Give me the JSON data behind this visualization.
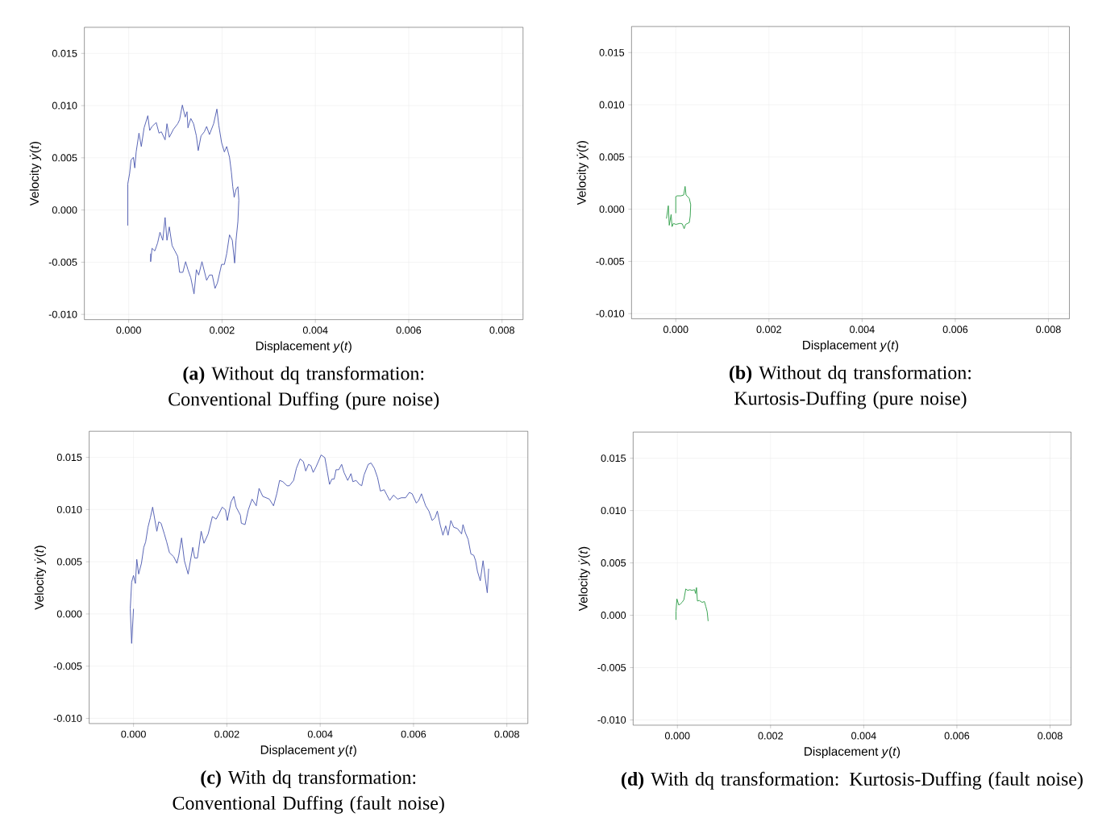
{
  "chart_data": [
    {
      "type": "line",
      "title": "**(a)** Without dq transformation: Conventional Duffing (pure noise)",
      "xlabel": "Displacement *y*(*t*)",
      "ylabel": "Velocity *ẏ*(*t*)",
      "color": "#4f5bb0",
      "grid": true,
      "x": [
        -2e-05,
        -2e-05,
        2e-05,
        5e-05,
        0.0001,
        0.00013,
        0.00016,
        0.00022,
        0.00027,
        0.00033,
        0.00041,
        0.00045,
        0.0005,
        0.00059,
        0.00065,
        0.0007,
        0.00078,
        0.00082,
        0.00087,
        0.00096,
        0.00105,
        0.00109,
        0.00115,
        0.00121,
        0.00125,
        0.00127,
        0.00133,
        0.00139,
        0.00145,
        0.00149,
        0.00155,
        0.00162,
        0.00167,
        0.00173,
        0.00182,
        0.00189,
        0.00193,
        0.00199,
        0.00205,
        0.0021,
        0.00216,
        0.0022,
        0.00223,
        0.00226,
        0.0023,
        0.00234,
        0.00236,
        0.00234,
        0.0023,
        0.00227,
        0.00222,
        0.00216,
        0.0021,
        0.00205,
        0.00199,
        0.0019,
        0.00185,
        0.00179,
        0.00173,
        0.00167,
        0.00157,
        0.0015,
        0.00145,
        0.0014,
        0.00133,
        0.00127,
        0.00122,
        0.00116,
        0.00109,
        0.00105,
        0.00099,
        0.00093,
        0.00087,
        0.00082,
        0.00078,
        0.00073,
        0.00067,
        0.00062,
        0.00056,
        0.0005,
        0.00047,
        0.00047
      ],
      "values": [
        -0.00149,
        0.00249,
        0.00351,
        0.00479,
        0.00505,
        0.00403,
        0.00556,
        0.00736,
        0.00608,
        0.00787,
        0.00903,
        0.00762,
        0.008,
        0.00838,
        0.00736,
        0.00749,
        0.00672,
        0.00826,
        0.00697,
        0.00774,
        0.00826,
        0.00864,
        0.01005,
        0.0089,
        0.00941,
        0.00787,
        0.00877,
        0.00826,
        0.0071,
        0.00569,
        0.0071,
        0.00749,
        0.008,
        0.00723,
        0.00826,
        0.00967,
        0.00813,
        0.00646,
        0.00556,
        0.00608,
        0.00505,
        0.00364,
        0.00223,
        0.00121,
        0.00197,
        0.00223,
        0.00095,
        -0.0011,
        -0.0029,
        -0.00508,
        -0.0029,
        -0.00238,
        -0.00418,
        -0.00521,
        -0.00521,
        -0.007,
        -0.00751,
        -0.00623,
        -0.00623,
        -0.00674,
        -0.00495,
        -0.00623,
        -0.00572,
        -0.00803,
        -0.00649,
        -0.00572,
        -0.00495,
        -0.00597,
        -0.00597,
        -0.00444,
        -0.00392,
        -0.00341,
        -0.00162,
        -0.0029,
        -0.00072,
        -0.0029,
        -0.00213,
        -0.00315,
        -0.00392,
        -0.00367,
        -0.00495,
        -0.00418
      ],
      "xlim": [
        -0.00095,
        0.00845
      ],
      "ylim": [
        -0.0105,
        0.0175
      ],
      "xticks": [
        {
          "value": 0,
          "label": "0.000"
        },
        {
          "value": 0.002,
          "label": "0.002"
        },
        {
          "value": 0.004,
          "label": "0.004"
        },
        {
          "value": 0.006,
          "label": "0.006"
        },
        {
          "value": 0.008,
          "label": "0.008"
        }
      ],
      "yticks": [
        {
          "value": -0.01,
          "label": "-0.010"
        },
        {
          "value": -0.005,
          "label": "-0.005"
        },
        {
          "value": 0,
          "label": "0.000"
        },
        {
          "value": 0.005,
          "label": "0.005"
        },
        {
          "value": 0.01,
          "label": "0.010"
        },
        {
          "value": 0.015,
          "label": "0.015"
        }
      ]
    },
    {
      "type": "line",
      "title": "**(b)** Without dq transformation: Kurtosis-Duffing (pure noise)",
      "xlabel": "Displacement *y*(*t*)",
      "ylabel": "Velocity *ẏ*(*t*)",
      "color": "#2e9e48",
      "grid": true,
      "x": [
        -0.0002,
        -0.00016,
        -0.00014,
        -0.0001,
        -8e-05,
        -5e-05,
        0,
        9e-05,
        0.00014,
        0.00018,
        0.00021,
        0.00029,
        0.00031,
        0.00032,
        0.00029,
        0.00022,
        0.0002,
        0.00017,
        0.00011,
        3e-05,
        0,
        0
      ],
      "values": [
        -0.0009,
        0.00033,
        -0.00154,
        -0.00051,
        -0.00167,
        -0.00136,
        -0.00146,
        -0.00136,
        -0.00141,
        -0.00187,
        -0.00146,
        -0.00128,
        -0.00064,
        0.00044,
        0.00103,
        0.00136,
        0.00218,
        0.00136,
        0.00128,
        0.00128,
        0.00121,
        -0.00038
      ],
      "xlim": [
        -0.00095,
        0.00845
      ],
      "ylim": [
        -0.0105,
        0.0175
      ],
      "xticks": [
        {
          "value": 0,
          "label": "0.000"
        },
        {
          "value": 0.002,
          "label": "0.002"
        },
        {
          "value": 0.004,
          "label": "0.004"
        },
        {
          "value": 0.006,
          "label": "0.006"
        },
        {
          "value": 0.008,
          "label": "0.008"
        }
      ],
      "yticks": [
        {
          "value": -0.01,
          "label": "-0.010"
        },
        {
          "value": -0.005,
          "label": "-0.005"
        },
        {
          "value": 0,
          "label": "0.000"
        },
        {
          "value": 0.005,
          "label": "0.005"
        },
        {
          "value": 0.01,
          "label": "0.010"
        },
        {
          "value": 0.015,
          "label": "0.015"
        }
      ]
    },
    {
      "type": "line",
      "title": "**(c)** With dq transformation: Conventional Duffing (fault noise)",
      "xlabel": "Displacement *y*(*t*)",
      "ylabel": "Velocity *ẏ*(*t*)",
      "color": "#4f5bb0",
      "grid": true,
      "x": [
        0,
        -4e-05,
        -7e-05,
        -4e-05,
        0,
        4e-05,
        7e-05,
        0.00011,
        0.00017,
        0.00022,
        0.00026,
        0.00031,
        0.00036,
        0.00041,
        0.00046,
        0.0005,
        0.00054,
        0.00059,
        0.00066,
        0.00071,
        0.00077,
        0.00086,
        0.00093,
        0.00097,
        0.00103,
        0.00109,
        0.00117,
        0.00127,
        0.00131,
        0.00137,
        0.00145,
        0.00151,
        0.0016,
        0.00169,
        0.00177,
        0.00183,
        0.0019,
        0.00197,
        0.00201,
        0.00209,
        0.00215,
        0.0022,
        0.00229,
        0.00231,
        0.00239,
        0.00246,
        0.00254,
        0.00263,
        0.00269,
        0.00277,
        0.00291,
        0.003,
        0.00307,
        0.00313,
        0.0032,
        0.00329,
        0.00334,
        0.00343,
        0.00349,
        0.00357,
        0.00364,
        0.00369,
        0.00375,
        0.0038,
        0.00385,
        0.00391,
        0.00396,
        0.00402,
        0.0041,
        0.00414,
        0.0042,
        0.00425,
        0.0043,
        0.00434,
        0.0044,
        0.00446,
        0.00451,
        0.00459,
        0.00466,
        0.0047,
        0.00477,
        0.00484,
        0.00489,
        0.00494,
        0.00503,
        0.00509,
        0.00516,
        0.00523,
        0.00529,
        0.00537,
        0.00543,
        0.00549,
        0.00557,
        0.00566,
        0.00574,
        0.00583,
        0.00591,
        0.00597,
        0.00606,
        0.00611,
        0.00617,
        0.00626,
        0.00633,
        0.0064,
        0.00646,
        0.00651,
        0.00657,
        0.00663,
        0.00669,
        0.00674,
        0.0068,
        0.00686,
        0.00694,
        0.00703,
        0.00706,
        0.00711,
        0.00717,
        0.00723,
        0.00729,
        0.00733,
        0.00737,
        0.00743,
        0.00749,
        0.00754,
        0.00758,
        0.00761
      ],
      "values": [
        0.00049,
        -0.00282,
        0.00049,
        0.00305,
        0.00369,
        0.00292,
        0.00523,
        0.00382,
        0.00485,
        0.00638,
        0.0069,
        0.00831,
        0.00921,
        0.01023,
        0.00895,
        0.00792,
        0.00882,
        0.00869,
        0.00767,
        0.0069,
        0.00587,
        0.00549,
        0.00485,
        0.00562,
        0.00728,
        0.0051,
        0.00382,
        0.00638,
        0.00536,
        0.00536,
        0.00792,
        0.00677,
        0.00767,
        0.00933,
        0.00908,
        0.00959,
        0.01023,
        0.00997,
        0.00895,
        0.01074,
        0.01126,
        0.01023,
        0.00946,
        0.00869,
        0.00856,
        0.00997,
        0.011,
        0.01036,
        0.01203,
        0.01126,
        0.011,
        0.01036,
        0.01151,
        0.01279,
        0.01267,
        0.01228,
        0.01228,
        0.01279,
        0.01395,
        0.01485,
        0.01459,
        0.01369,
        0.01433,
        0.01421,
        0.01356,
        0.01408,
        0.01459,
        0.01523,
        0.01497,
        0.01395,
        0.01241,
        0.01292,
        0.01292,
        0.01382,
        0.01382,
        0.01433,
        0.01356,
        0.01279,
        0.01344,
        0.01267,
        0.01279,
        0.01241,
        0.01228,
        0.01331,
        0.01433,
        0.01446,
        0.01395,
        0.01305,
        0.01177,
        0.0119,
        0.01138,
        0.01087,
        0.01138,
        0.011,
        0.01113,
        0.01113,
        0.01164,
        0.01151,
        0.01062,
        0.01087,
        0.01151,
        0.01036,
        0.00985,
        0.00895,
        0.00921,
        0.00985,
        0.00856,
        0.00754,
        0.00844,
        0.00754,
        0.00895,
        0.00831,
        0.00818,
        0.00767,
        0.00856,
        0.00779,
        0.00715,
        0.00574,
        0.00562,
        0.0051,
        0.00408,
        0.00318,
        0.0051,
        0.00331,
        0.00203,
        0.00433
      ],
      "xlim": [
        -0.00095,
        0.00845
      ],
      "ylim": [
        -0.0105,
        0.0175
      ],
      "xticks": [
        {
          "value": 0,
          "label": "0.000"
        },
        {
          "value": 0.002,
          "label": "0.002"
        },
        {
          "value": 0.004,
          "label": "0.004"
        },
        {
          "value": 0.006,
          "label": "0.006"
        },
        {
          "value": 0.008,
          "label": "0.008"
        }
      ],
      "yticks": [
        {
          "value": -0.01,
          "label": "-0.010"
        },
        {
          "value": -0.005,
          "label": "-0.005"
        },
        {
          "value": 0,
          "label": "0.000"
        },
        {
          "value": 0.005,
          "label": "0.005"
        },
        {
          "value": 0.01,
          "label": "0.010"
        },
        {
          "value": 0.015,
          "label": "0.015"
        }
      ]
    },
    {
      "type": "line",
      "title": "**(d)** With dq transformation: Kurtosis-Duffing (fault noise)",
      "xlabel": "Displacement *y*(*t*)",
      "ylabel": "Velocity *ẏ*(*t*)",
      "color": "#2e9e48",
      "grid": true,
      "x": [
        -3e-05,
        -3e-05,
        -1e-05,
        3e-05,
        7e-05,
        0.0001,
        0.00014,
        0.00018,
        0.00022,
        0.00027,
        0.00031,
        0.00037,
        0.00039,
        0.00041,
        0.00043,
        0.00047,
        0.00053,
        0.00058,
        0.00061,
        0.00064,
        0.00066
      ],
      "values": [
        -0.00044,
        0.00038,
        0.00156,
        0.00097,
        0.0011,
        0.00123,
        0.00149,
        0.00251,
        0.00238,
        0.00244,
        0.00238,
        0.00244,
        0.00208,
        0.00264,
        0.00136,
        0.00141,
        0.00123,
        0.00131,
        0.00085,
        0.00033,
        -0.00056
      ],
      "xlim": [
        -0.00095,
        0.00845
      ],
      "ylim": [
        -0.0105,
        0.0175
      ],
      "xticks": [
        {
          "value": 0,
          "label": "0.000"
        },
        {
          "value": 0.002,
          "label": "0.002"
        },
        {
          "value": 0.004,
          "label": "0.004"
        },
        {
          "value": 0.006,
          "label": "0.006"
        },
        {
          "value": 0.008,
          "label": "0.008"
        }
      ],
      "yticks": [
        {
          "value": -0.01,
          "label": "-0.010"
        },
        {
          "value": -0.005,
          "label": "-0.005"
        },
        {
          "value": 0,
          "label": "0.000"
        },
        {
          "value": 0.005,
          "label": "0.005"
        },
        {
          "value": 0.01,
          "label": "0.010"
        },
        {
          "value": 0.015,
          "label": "0.015"
        }
      ]
    }
  ]
}
